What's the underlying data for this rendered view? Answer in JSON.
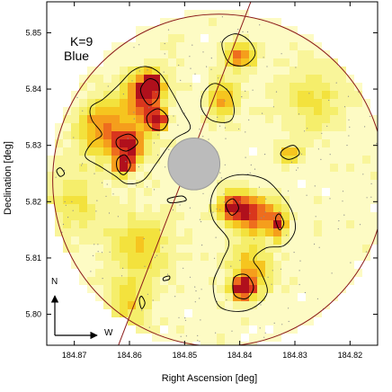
{
  "chart_data": {
    "type": "heatmap",
    "title": "",
    "panel_label": [
      "K=9",
      "Blue"
    ],
    "xlabel": "Right Ascension [deg]",
    "ylabel": "Declination [deg]",
    "xlim": [
      184.875,
      184.815
    ],
    "ylim": [
      5.7945,
      5.8555
    ],
    "x_ticks": [
      184.87,
      184.86,
      184.85,
      184.84,
      184.83,
      184.82
    ],
    "x_tick_labels": [
      "184.87",
      "184.86",
      "184.85",
      "184.84",
      "184.83",
      "184.82"
    ],
    "y_ticks": [
      5.8,
      5.81,
      5.82,
      5.83,
      5.84,
      5.85
    ],
    "y_tick_labels": [
      "5.80",
      "5.81",
      "5.82",
      "5.83",
      "5.84",
      "5.85"
    ],
    "grid": false,
    "color_scale": [
      "#ffffff",
      "#fdfbc4",
      "#f9f59a",
      "#f5ee6b",
      "#f3e23d",
      "#f6c51f",
      "#f59e1c",
      "#ee6d1e",
      "#d9361d",
      "#b0101c"
    ],
    "hotspots": [
      {
        "ra": 184.8575,
        "dec": 5.8385,
        "level": 0.75,
        "sigma_ra": 0.0025,
        "sigma_dec": 0.003
      },
      {
        "ra": 184.855,
        "dec": 5.8345,
        "level": 0.95,
        "sigma_ra": 0.0012,
        "sigma_dec": 0.0012
      },
      {
        "ra": 184.86,
        "dec": 5.83,
        "level": 0.7,
        "sigma_ra": 0.0022,
        "sigma_dec": 0.0025
      },
      {
        "ra": 184.861,
        "dec": 5.8265,
        "level": 1.0,
        "sigma_ra": 0.001,
        "sigma_dec": 0.001
      },
      {
        "ra": 184.865,
        "dec": 5.833,
        "level": 0.55,
        "sigma_ra": 0.003,
        "sigma_dec": 0.0035
      },
      {
        "ra": 184.856,
        "dec": 5.841,
        "level": 0.85,
        "sigma_ra": 0.0013,
        "sigma_dec": 0.0014
      },
      {
        "ra": 184.84,
        "dec": 5.846,
        "level": 0.6,
        "sigma_ra": 0.002,
        "sigma_dec": 0.0015
      },
      {
        "ra": 184.843,
        "dec": 5.838,
        "level": 0.45,
        "sigma_ra": 0.0018,
        "sigma_dec": 0.0025
      },
      {
        "ra": 184.841,
        "dec": 5.819,
        "level": 0.75,
        "sigma_ra": 0.002,
        "sigma_dec": 0.002
      },
      {
        "ra": 184.837,
        "dec": 5.8175,
        "level": 0.6,
        "sigma_ra": 0.0025,
        "sigma_dec": 0.0025
      },
      {
        "ra": 184.833,
        "dec": 5.816,
        "level": 0.6,
        "sigma_ra": 0.0012,
        "sigma_dec": 0.0018
      },
      {
        "ra": 184.838,
        "dec": 5.808,
        "level": 0.5,
        "sigma_ra": 0.0025,
        "sigma_dec": 0.003
      },
      {
        "ra": 184.8395,
        "dec": 5.8045,
        "level": 1.0,
        "sigma_ra": 0.0014,
        "sigma_dec": 0.0012
      },
      {
        "ra": 184.831,
        "dec": 5.8285,
        "level": 0.45,
        "sigma_ra": 0.0015,
        "sigma_dec": 0.0012
      },
      {
        "ra": 184.858,
        "dec": 5.812,
        "level": 0.35,
        "sigma_ra": 0.004,
        "sigma_dec": 0.004
      },
      {
        "ra": 184.86,
        "dec": 5.802,
        "level": 0.3,
        "sigma_ra": 0.003,
        "sigma_dec": 0.003
      },
      {
        "ra": 184.87,
        "dec": 5.82,
        "level": 0.25,
        "sigma_ra": 0.0035,
        "sigma_dec": 0.004
      },
      {
        "ra": 184.827,
        "dec": 5.838,
        "level": 0.3,
        "sigma_ra": 0.004,
        "sigma_dec": 0.004
      }
    ],
    "contours": [
      {
        "level": "outer",
        "points": [
          [
            184.8648,
            5.8382
          ],
          [
            184.8619,
            5.8408
          ],
          [
            184.8595,
            5.8432
          ],
          [
            184.857,
            5.844
          ],
          [
            184.8545,
            5.8428
          ],
          [
            184.8525,
            5.8398
          ],
          [
            184.8505,
            5.8362
          ],
          [
            184.849,
            5.833
          ],
          [
            184.852,
            5.831
          ],
          [
            184.855,
            5.827
          ],
          [
            184.8575,
            5.8238
          ],
          [
            184.8605,
            5.8232
          ],
          [
            184.8625,
            5.8245
          ],
          [
            184.8652,
            5.8262
          ],
          [
            184.868,
            5.828
          ],
          [
            184.8668,
            5.8305
          ],
          [
            184.865,
            5.832
          ],
          [
            184.8668,
            5.8345
          ],
          [
            184.867,
            5.8368
          ]
        ]
      },
      {
        "level": "outer",
        "points": [
          [
            184.8435,
            5.8235
          ],
          [
            184.84,
            5.8248
          ],
          [
            184.8355,
            5.824
          ],
          [
            184.8325,
            5.8212
          ],
          [
            184.8305,
            5.8182
          ],
          [
            184.83,
            5.8148
          ],
          [
            184.832,
            5.8122
          ],
          [
            184.8352,
            5.8118
          ],
          [
            184.8375,
            5.8098
          ],
          [
            184.8362,
            5.8075
          ],
          [
            184.835,
            5.804
          ],
          [
            184.837,
            5.8015
          ],
          [
            184.8402,
            5.8005
          ],
          [
            184.8438,
            5.8015
          ],
          [
            184.8448,
            5.8055
          ],
          [
            184.8432,
            5.8095
          ],
          [
            184.842,
            5.813
          ],
          [
            184.8448,
            5.8168
          ],
          [
            184.8452,
            5.8205
          ]
        ]
      },
      {
        "level": "outer",
        "points": [
          [
            184.8432,
            5.8482
          ],
          [
            184.841,
            5.8498
          ],
          [
            184.8385,
            5.8488
          ],
          [
            184.8372,
            5.8462
          ],
          [
            184.8392,
            5.8442
          ],
          [
            184.842,
            5.8448
          ]
        ]
      },
      {
        "level": "outer",
        "points": [
          [
            184.8465,
            5.8395
          ],
          [
            184.8445,
            5.841
          ],
          [
            184.842,
            5.8395
          ],
          [
            184.841,
            5.8362
          ],
          [
            184.842,
            5.8342
          ],
          [
            184.8452,
            5.8345
          ],
          [
            184.847,
            5.8368
          ]
        ]
      },
      {
        "level": "inner",
        "points": [
          [
            184.858,
            5.8398
          ],
          [
            184.8565,
            5.8418
          ],
          [
            184.8548,
            5.841
          ],
          [
            184.8548,
            5.8385
          ],
          [
            184.8565,
            5.8372
          ]
        ]
      },
      {
        "level": "inner",
        "points": [
          [
            184.8568,
            5.8352
          ],
          [
            184.8548,
            5.8365
          ],
          [
            184.853,
            5.8348
          ],
          [
            184.854,
            5.8328
          ],
          [
            184.8562,
            5.8332
          ]
        ]
      },
      {
        "level": "inner",
        "points": [
          [
            184.8622,
            5.8312
          ],
          [
            184.86,
            5.832
          ],
          [
            184.8585,
            5.8305
          ],
          [
            184.8605,
            5.829
          ],
          [
            184.8622,
            5.8298
          ]
        ]
      },
      {
        "level": "inner",
        "points": [
          [
            184.8622,
            5.8275
          ],
          [
            184.8608,
            5.8283
          ],
          [
            184.8598,
            5.8265
          ],
          [
            184.861,
            5.8248
          ],
          [
            184.8622,
            5.8258
          ]
        ]
      },
      {
        "level": "inner",
        "points": [
          [
            184.841,
            5.8065
          ],
          [
            184.8388,
            5.807
          ],
          [
            184.8375,
            5.8048
          ],
          [
            184.8388,
            5.8028
          ],
          [
            184.841,
            5.8035
          ]
        ]
      },
      {
        "level": "inner",
        "points": [
          [
            184.8425,
            5.8195
          ],
          [
            184.8412,
            5.8205
          ],
          [
            184.8402,
            5.8188
          ],
          [
            184.8415,
            5.8176
          ]
        ]
      },
      {
        "level": "inner",
        "points": [
          [
            184.8335,
            5.817
          ],
          [
            184.8328,
            5.8178
          ],
          [
            184.832,
            5.8162
          ],
          [
            184.8328,
            5.815
          ]
        ]
      },
      {
        "level": "inner",
        "points": [
          [
            184.8322,
            5.8292
          ],
          [
            184.8302,
            5.83
          ],
          [
            184.8292,
            5.8285
          ],
          [
            184.831,
            5.8275
          ],
          [
            184.8325,
            5.8282
          ]
        ]
      },
      {
        "level": "inner",
        "points": [
          [
            184.853,
            5.8205
          ],
          [
            184.8505,
            5.821
          ],
          [
            184.8498,
            5.8202
          ],
          [
            184.8525,
            5.8198
          ]
        ]
      },
      {
        "level": "inner",
        "points": [
          [
            184.8732,
            5.8255
          ],
          [
            184.8725,
            5.826
          ],
          [
            184.8718,
            5.825
          ],
          [
            184.8726,
            5.8245
          ]
        ]
      },
      {
        "level": "inner",
        "points": [
          [
            184.8582,
            5.8025
          ],
          [
            184.8578,
            5.8032
          ],
          [
            184.8572,
            5.802
          ],
          [
            184.8578,
            5.801
          ]
        ]
      },
      {
        "level": "inner",
        "points": [
          [
            184.8538,
            5.8065
          ],
          [
            184.8528,
            5.8068
          ],
          [
            184.8528,
            5.8062
          ],
          [
            184.8538,
            5.806
          ]
        ]
      }
    ],
    "central_mask": {
      "ra": 184.8483,
      "dec": 5.8267,
      "radius_deg": 0.0046,
      "color": "#bbbbbb"
    },
    "survey_circle": {
      "ra": 184.8438,
      "dec": 5.8238,
      "radius_deg": 0.0295,
      "color": "#8b1a1a"
    },
    "boundary_line": {
      "points": [
        [
          184.862,
          5.7945
        ],
        [
          184.838,
          5.8555
        ]
      ],
      "color": "#8b1a1a"
    },
    "compass": {
      "north_label": "N",
      "west_label": "W"
    }
  }
}
